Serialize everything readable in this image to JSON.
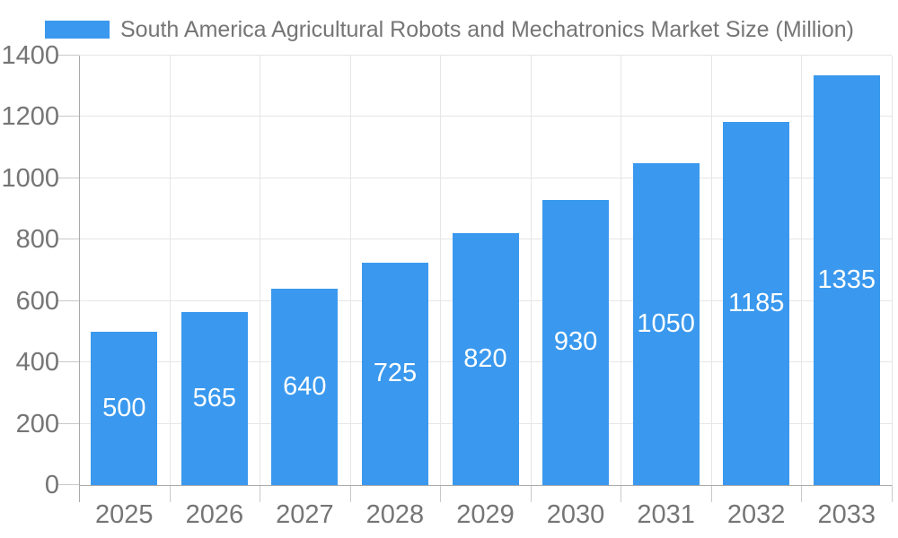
{
  "chart_data": {
    "type": "bar",
    "title": "South America Agricultural Robots and Mechatronics Market Size (Million)",
    "categories": [
      "2025",
      "2026",
      "2027",
      "2028",
      "2029",
      "2030",
      "2031",
      "2032",
      "2033"
    ],
    "values": [
      500,
      565,
      640,
      725,
      820,
      930,
      1050,
      1185,
      1335
    ],
    "xlabel": "",
    "ylabel": "",
    "ylim": [
      0,
      1400
    ],
    "ytick_step": 200,
    "yticks": [
      0,
      200,
      400,
      600,
      800,
      1000,
      1200,
      1400
    ],
    "grid": true,
    "legend_position": "top",
    "colors": {
      "bar": "#3A99EE",
      "bar_value_label": "#ffffff",
      "axis_text": "#757575",
      "grid_line": "#e6e6e6",
      "axis_line": "#aaaaaa",
      "tick": "#c9c9c9",
      "background": "#ffffff"
    }
  }
}
